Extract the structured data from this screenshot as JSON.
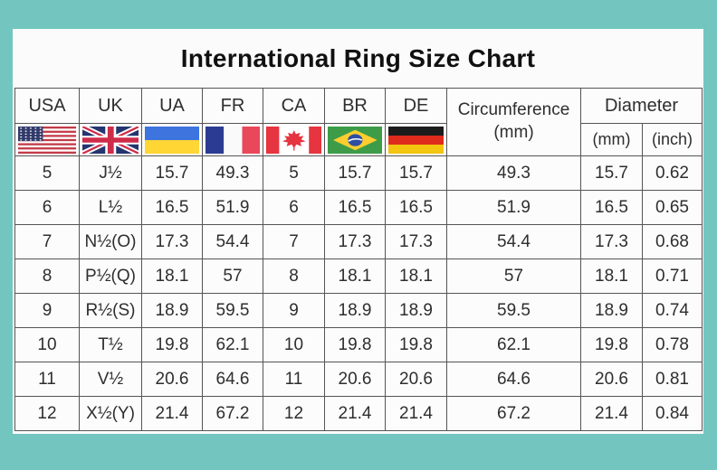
{
  "title": "International Ring Size Chart",
  "colors": {
    "background": "#73C6C0",
    "table_background": "#FBFBFB",
    "grid_line": "#555555",
    "text_color": "#2E2E2E"
  },
  "table": {
    "column_keys": [
      "usa",
      "uk",
      "ua",
      "fr",
      "ca",
      "br",
      "de",
      "circumference_mm",
      "diameter_mm",
      "diameter_inch"
    ],
    "country_columns": [
      {
        "label": "USA",
        "flag": "us",
        "icon": "us-flag-icon"
      },
      {
        "label": "UK",
        "flag": "uk",
        "icon": "uk-flag-icon"
      },
      {
        "label": "UA",
        "flag": "ua",
        "icon": "ukraine-flag-icon"
      },
      {
        "label": "FR",
        "flag": "fr",
        "icon": "france-flag-icon"
      },
      {
        "label": "CA",
        "flag": "ca",
        "icon": "canada-flag-icon"
      },
      {
        "label": "BR",
        "flag": "br",
        "icon": "brazil-flag-icon"
      },
      {
        "label": "DE",
        "flag": "de",
        "icon": "germany-flag-icon"
      }
    ],
    "circumference_header": {
      "line1": "Circumference",
      "line2": "(mm)"
    },
    "diameter_header": {
      "label": "Diameter",
      "sub_mm": "(mm)",
      "sub_inch": "(inch)"
    },
    "rows": [
      [
        "5",
        "J½",
        "15.7",
        "49.3",
        "5",
        "15.7",
        "15.7",
        "49.3",
        "15.7",
        "0.62"
      ],
      [
        "6",
        "L½",
        "16.5",
        "51.9",
        "6",
        "16.5",
        "16.5",
        "51.9",
        "16.5",
        "0.65"
      ],
      [
        "7",
        "N½(O)",
        "17.3",
        "54.4",
        "7",
        "17.3",
        "17.3",
        "54.4",
        "17.3",
        "0.68"
      ],
      [
        "8",
        "P½(Q)",
        "18.1",
        "57",
        "8",
        "18.1",
        "18.1",
        "57",
        "18.1",
        "0.71"
      ],
      [
        "9",
        "R½(S)",
        "18.9",
        "59.5",
        "9",
        "18.9",
        "18.9",
        "59.5",
        "18.9",
        "0.74"
      ],
      [
        "10",
        "T½",
        "19.8",
        "62.1",
        "10",
        "19.8",
        "19.8",
        "62.1",
        "19.8",
        "0.78"
      ],
      [
        "11",
        "V½",
        "20.6",
        "64.6",
        "11",
        "20.6",
        "20.6",
        "64.6",
        "20.6",
        "0.81"
      ],
      [
        "12",
        "X½(Y)",
        "21.4",
        "67.2",
        "12",
        "21.4",
        "21.4",
        "67.2",
        "21.4",
        "0.84"
      ]
    ]
  },
  "chart_data": {
    "type": "table",
    "title": "International Ring Size Chart",
    "columns": [
      "USA",
      "UK",
      "UA",
      "FR",
      "CA",
      "BR",
      "DE",
      "Circumference (mm)",
      "Diameter (mm)",
      "Diameter (inch)"
    ],
    "rows": [
      [
        "5",
        "J½",
        "15.7",
        "49.3",
        "5",
        "15.7",
        "15.7",
        "49.3",
        "15.7",
        "0.62"
      ],
      [
        "6",
        "L½",
        "16.5",
        "51.9",
        "6",
        "16.5",
        "16.5",
        "51.9",
        "16.5",
        "0.65"
      ],
      [
        "7",
        "N½(O)",
        "17.3",
        "54.4",
        "7",
        "17.3",
        "17.3",
        "54.4",
        "17.3",
        "0.68"
      ],
      [
        "8",
        "P½(Q)",
        "18.1",
        "57",
        "8",
        "18.1",
        "18.1",
        "57",
        "18.1",
        "0.71"
      ],
      [
        "9",
        "R½(S)",
        "18.9",
        "59.5",
        "9",
        "18.9",
        "18.9",
        "59.5",
        "18.9",
        "0.74"
      ],
      [
        "10",
        "T½",
        "19.8",
        "62.1",
        "10",
        "19.8",
        "19.8",
        "62.1",
        "19.8",
        "0.78"
      ],
      [
        "11",
        "V½",
        "20.6",
        "64.6",
        "11",
        "20.6",
        "20.6",
        "64.6",
        "20.6",
        "0.81"
      ],
      [
        "12",
        "X½(Y)",
        "21.4",
        "67.2",
        "12",
        "21.4",
        "21.4",
        "67.2",
        "21.4",
        "0.84"
      ]
    ]
  }
}
